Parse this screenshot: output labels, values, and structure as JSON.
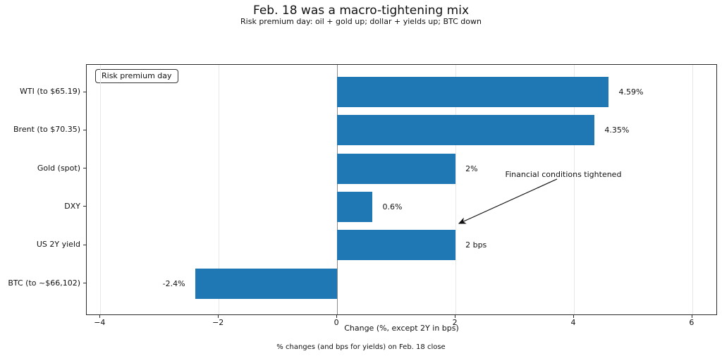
{
  "title": "Feb. 18 was a macro-tightening mix",
  "subtitle": "Risk premium day: oil + gold up; dollar + yields up; BTC down",
  "footer": "% changes (and bps for yields) on Feb. 18 close",
  "legend": {
    "label": "Risk premium day"
  },
  "annotation": {
    "text": "Financial conditions tightened"
  },
  "chart_data": {
    "type": "bar",
    "orientation": "horizontal",
    "title": "Feb. 18 was a macro-tightening mix",
    "subtitle": "Risk premium day: oil + gold up; dollar + yields up; BTC down",
    "categories": [
      "WTI (to $65.19)",
      "Brent (to $70.35)",
      "Gold (spot)",
      "DXY",
      "US 2Y yield",
      "BTC (to ~$66,102)"
    ],
    "values": [
      4.59,
      4.35,
      2,
      0.6,
      2,
      -2.4
    ],
    "value_labels": [
      "4.59%",
      "4.35%",
      "2%",
      "0.6%",
      "2 bps",
      "-2.4%"
    ],
    "xlabel": "Change (%, except 2Y in bps)",
    "ylabel": "",
    "xlim": [
      -4.23,
      6.43
    ],
    "xticks": [
      -4,
      -2,
      0,
      2,
      4,
      6
    ],
    "xtick_labels": [
      "−4",
      "−2",
      "0",
      "2",
      "4",
      "6"
    ],
    "bar_color": "#1f77b4",
    "grid": true,
    "zero_line": true,
    "legend_position": "upper left"
  }
}
